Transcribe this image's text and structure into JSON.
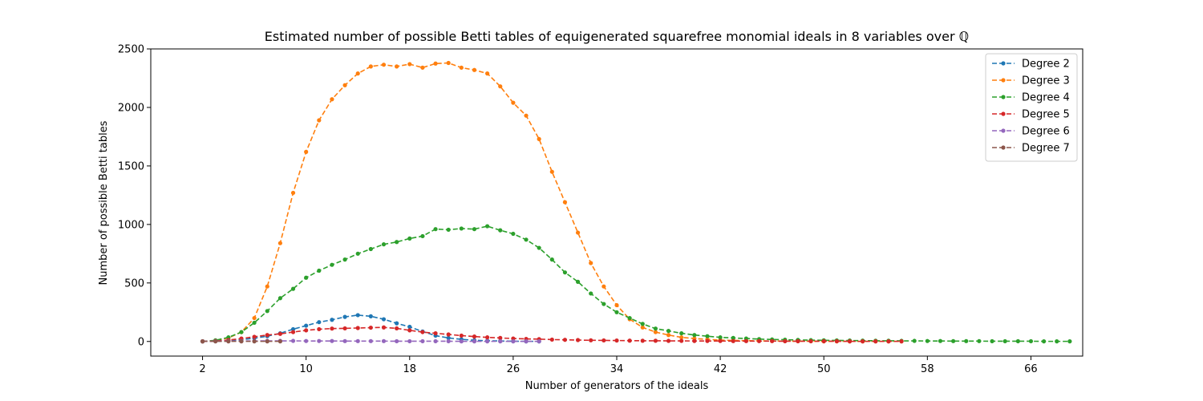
{
  "chart_data": {
    "type": "line",
    "title": "Estimated number of possible Betti tables of equigenerated squarefree monomial ideals in 8 variables over ℚ",
    "xlabel": "Number of generators of the ideals",
    "ylabel": "Number of possible Betti tables",
    "xlim": [
      -2,
      70
    ],
    "ylim": [
      -125,
      2500
    ],
    "xticks": [
      2,
      10,
      18,
      26,
      34,
      42,
      50,
      58,
      66
    ],
    "yticks": [
      0,
      500,
      1000,
      1500,
      2000,
      2500
    ],
    "grid": false,
    "legend_position": "top-right",
    "line_style": "dashed",
    "marker": "dot",
    "series": [
      {
        "name": "Degree 2",
        "color": "#1f77b4",
        "x": [
          2,
          3,
          4,
          5,
          6,
          7,
          8,
          9,
          10,
          11,
          12,
          13,
          14,
          15,
          16,
          17,
          18,
          19,
          20,
          21,
          22,
          23,
          24,
          25,
          26,
          27,
          28
        ],
        "y": [
          1,
          3,
          7,
          15,
          28,
          45,
          70,
          105,
          135,
          165,
          185,
          210,
          225,
          215,
          190,
          155,
          125,
          85,
          50,
          30,
          18,
          10,
          6,
          4,
          2,
          1,
          1
        ]
      },
      {
        "name": "Degree 3",
        "color": "#ff7f0e",
        "x": [
          2,
          3,
          4,
          5,
          6,
          7,
          8,
          9,
          10,
          11,
          12,
          13,
          14,
          15,
          16,
          17,
          18,
          19,
          20,
          21,
          22,
          23,
          24,
          25,
          26,
          27,
          28,
          29,
          30,
          31,
          32,
          33,
          34,
          35,
          36,
          37,
          38,
          39,
          40,
          41,
          42,
          43,
          44,
          45,
          46,
          47,
          48,
          49,
          50,
          51,
          52,
          53,
          54,
          55,
          56
        ],
        "y": [
          1,
          8,
          30,
          80,
          200,
          470,
          840,
          1270,
          1620,
          1890,
          2070,
          2190,
          2290,
          2350,
          2365,
          2350,
          2370,
          2340,
          2375,
          2380,
          2340,
          2320,
          2290,
          2180,
          2040,
          1930,
          1730,
          1450,
          1190,
          930,
          670,
          470,
          310,
          190,
          120,
          80,
          55,
          35,
          25,
          18,
          12,
          9,
          7,
          5,
          4,
          3,
          2,
          2,
          1,
          1,
          1,
          1,
          1,
          1,
          1
        ]
      },
      {
        "name": "Degree 4",
        "color": "#2ca02c",
        "x": [
          2,
          3,
          4,
          5,
          6,
          7,
          8,
          9,
          10,
          11,
          12,
          13,
          14,
          15,
          16,
          17,
          18,
          19,
          20,
          21,
          22,
          23,
          24,
          25,
          26,
          27,
          28,
          29,
          30,
          31,
          32,
          33,
          34,
          35,
          36,
          37,
          38,
          39,
          40,
          41,
          42,
          43,
          44,
          45,
          46,
          47,
          48,
          49,
          50,
          51,
          52,
          53,
          54,
          55,
          56,
          57,
          58,
          59,
          60,
          61,
          62,
          63,
          64,
          65,
          66,
          67,
          68,
          69
        ],
        "y": [
          1,
          10,
          35,
          80,
          160,
          260,
          370,
          450,
          545,
          605,
          655,
          700,
          750,
          790,
          830,
          850,
          880,
          900,
          960,
          955,
          965,
          960,
          985,
          950,
          920,
          870,
          800,
          700,
          590,
          510,
          410,
          320,
          250,
          200,
          150,
          110,
          90,
          70,
          55,
          45,
          35,
          30,
          25,
          20,
          17,
          15,
          13,
          11,
          10,
          9,
          8,
          7,
          6,
          6,
          5,
          5,
          4,
          4,
          3,
          3,
          3,
          2,
          2,
          2,
          2,
          1,
          1,
          1
        ]
      },
      {
        "name": "Degree 5",
        "color": "#d62728",
        "x": [
          2,
          3,
          4,
          5,
          6,
          7,
          8,
          9,
          10,
          11,
          12,
          13,
          14,
          15,
          16,
          17,
          18,
          19,
          20,
          21,
          22,
          23,
          24,
          25,
          26,
          27,
          28,
          29,
          30,
          31,
          32,
          33,
          34,
          35,
          36,
          37,
          38,
          39,
          40,
          41,
          42,
          43,
          44,
          45,
          46,
          47,
          48,
          49,
          50,
          51,
          52,
          53,
          54,
          55,
          56
        ],
        "y": [
          1,
          4,
          12,
          25,
          40,
          55,
          65,
          80,
          95,
          105,
          110,
          112,
          115,
          118,
          120,
          112,
          95,
          80,
          70,
          60,
          50,
          42,
          35,
          30,
          25,
          22,
          20,
          16,
          14,
          12,
          10,
          9,
          8,
          7,
          6,
          6,
          5,
          5,
          4,
          4,
          4,
          3,
          3,
          3,
          3,
          2,
          2,
          2,
          2,
          2,
          1,
          1,
          1,
          1,
          1
        ]
      },
      {
        "name": "Degree 6",
        "color": "#9467bd",
        "x": [
          2,
          3,
          4,
          5,
          6,
          7,
          8,
          9,
          10,
          11,
          12,
          13,
          14,
          15,
          16,
          17,
          18,
          19,
          20,
          21,
          22,
          23,
          24,
          25,
          26,
          27,
          28
        ],
        "y": [
          1,
          2,
          3,
          4,
          4,
          5,
          5,
          5,
          4,
          4,
          4,
          3,
          3,
          3,
          3,
          2,
          2,
          2,
          2,
          2,
          1,
          1,
          1,
          1,
          1,
          1,
          1
        ]
      },
      {
        "name": "Degree 7",
        "color": "#8c564b",
        "x": [
          2,
          3,
          4,
          5,
          6,
          7,
          8
        ],
        "y": [
          1,
          1,
          1,
          1,
          1,
          1,
          1
        ]
      }
    ]
  }
}
